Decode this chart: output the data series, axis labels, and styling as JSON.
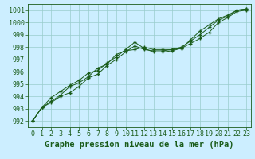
{
  "title": "Graphe pression niveau de la mer (hPa)",
  "bg_color": "#cceeff",
  "grid_color": "#99cccc",
  "line_color": "#1a5c1a",
  "marker_color": "#1a5c1a",
  "xlim": [
    -0.5,
    23.5
  ],
  "ylim": [
    991.5,
    1001.5
  ],
  "yticks": [
    992,
    993,
    994,
    995,
    996,
    997,
    998,
    999,
    1000,
    1001
  ],
  "xticks": [
    0,
    1,
    2,
    3,
    4,
    5,
    6,
    7,
    8,
    9,
    10,
    11,
    12,
    13,
    14,
    15,
    16,
    17,
    18,
    19,
    20,
    21,
    22,
    23
  ],
  "series1": [
    992.0,
    993.1,
    993.5,
    994.0,
    994.3,
    994.8,
    995.5,
    995.8,
    996.5,
    997.0,
    997.6,
    998.1,
    997.8,
    997.7,
    997.7,
    997.8,
    997.9,
    998.3,
    998.7,
    999.2,
    1000.0,
    1000.4,
    1000.9,
    1001.0
  ],
  "series2": [
    992.0,
    993.1,
    993.6,
    994.1,
    994.8,
    995.1,
    995.6,
    996.3,
    996.6,
    997.4,
    997.7,
    997.8,
    998.0,
    997.8,
    997.8,
    997.8,
    998.0,
    998.5,
    999.0,
    999.6,
    1000.2,
    1000.5,
    1001.0,
    1001.1
  ],
  "series3": [
    992.0,
    993.1,
    993.9,
    994.4,
    994.9,
    995.3,
    995.9,
    996.1,
    996.7,
    997.2,
    997.8,
    998.4,
    997.9,
    997.6,
    997.6,
    997.7,
    997.9,
    998.6,
    999.3,
    999.8,
    1000.3,
    1000.6,
    1001.0,
    1001.1
  ],
  "tick_fontsize": 6,
  "label_fontsize": 7.5,
  "figwidth": 3.2,
  "figheight": 2.0,
  "dpi": 100
}
